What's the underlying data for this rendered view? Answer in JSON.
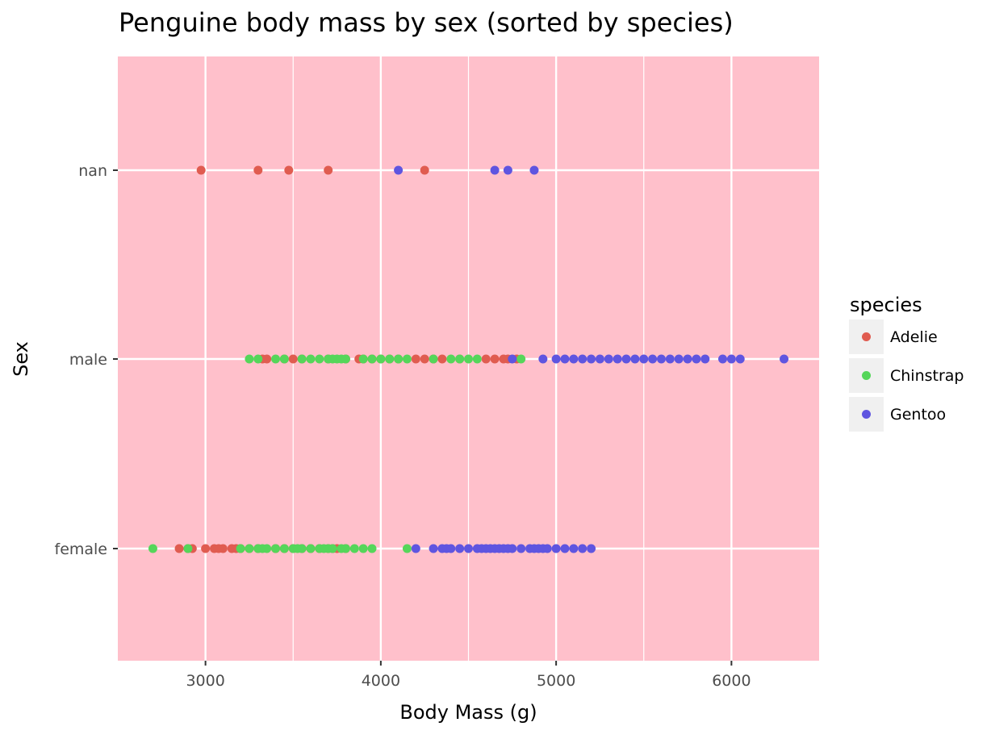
{
  "chart_data": {
    "type": "scatter",
    "title": "Penguine body mass by sex (sorted by species)",
    "xlabel": "Body Mass (g)",
    "ylabel": "Sex",
    "xlim": [
      2500,
      6500
    ],
    "x_ticks": [
      "3000",
      "4000",
      "5000",
      "6000"
    ],
    "x_tick_values": [
      3000,
      4000,
      5000,
      6000
    ],
    "x_minor_values": [
      3500,
      4500,
      5500
    ],
    "categories": [
      "female",
      "male",
      "nan"
    ],
    "grid": true,
    "background_color": "#ffc0cb",
    "grid_color": "#ffffff",
    "legend": {
      "title": "species",
      "placement": "right"
    },
    "series": [
      {
        "name": "Adelie",
        "color": "#e05c50",
        "points": {
          "nan": [
            2975,
            3300,
            3475,
            3700,
            4250
          ],
          "male": [
            3325,
            3350,
            3450,
            3500,
            3550,
            3700,
            3800,
            3875,
            3900,
            3950,
            4000,
            4050,
            4100,
            4200,
            4250,
            4300,
            4350,
            4450,
            4600,
            4650,
            4700,
            4725,
            4775
          ],
          "female": [
            2850,
            2900,
            2925,
            3000,
            3050,
            3075,
            3100,
            3150,
            3175,
            3200,
            3250,
            3300,
            3400,
            3450,
            3500,
            3550,
            3600,
            3650,
            3700,
            3725,
            3750,
            3800
          ]
        }
      },
      {
        "name": "Chinstrap",
        "color": "#55d65a",
        "points": {
          "male": [
            3250,
            3300,
            3400,
            3450,
            3550,
            3600,
            3650,
            3700,
            3725,
            3750,
            3775,
            3800,
            3900,
            3950,
            4000,
            4050,
            4100,
            4150,
            4300,
            4400,
            4450,
            4500,
            4550,
            4800
          ],
          "female": [
            2700,
            2900,
            3200,
            3250,
            3300,
            3325,
            3350,
            3400,
            3450,
            3500,
            3525,
            3550,
            3600,
            3650,
            3675,
            3700,
            3725,
            3775,
            3800,
            3850,
            3900,
            3950,
            4150
          ]
        }
      },
      {
        "name": "Gentoo",
        "color": "#5f55e0",
        "points": {
          "nan": [
            4100,
            4650,
            4725,
            4875
          ],
          "male": [
            4750,
            4925,
            5000,
            5050,
            5100,
            5150,
            5200,
            5250,
            5300,
            5350,
            5400,
            5450,
            5500,
            5550,
            5600,
            5650,
            5700,
            5750,
            5800,
            5850,
            5950,
            6000,
            6050,
            6300
          ],
          "female": [
            4200,
            4300,
            4350,
            4375,
            4400,
            4450,
            4500,
            4550,
            4575,
            4600,
            4625,
            4650,
            4675,
            4700,
            4725,
            4750,
            4800,
            4850,
            4875,
            4900,
            4925,
            4950,
            5000,
            5050,
            5100,
            5150,
            5200
          ]
        }
      }
    ]
  }
}
